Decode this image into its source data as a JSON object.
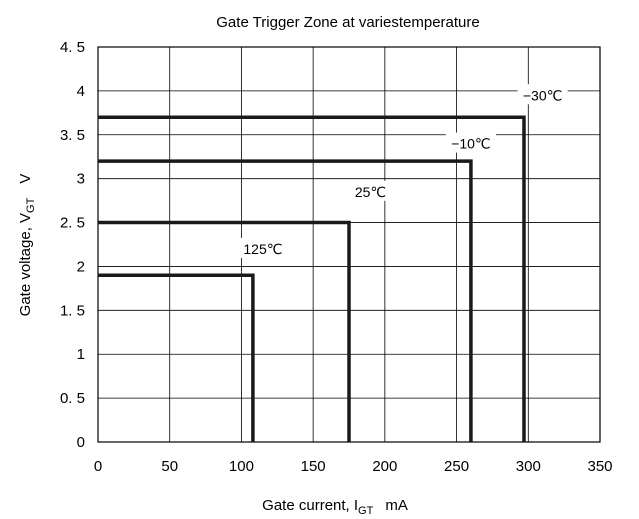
{
  "chart_data": {
    "type": "line",
    "title": "Gate Trigger Zone at variestemperature",
    "xlabel": {
      "main": "Gate current, I",
      "sub": "GT",
      "unit": "mA"
    },
    "ylabel": {
      "main": "Gate voltage, V",
      "sub": "GT",
      "unit": "V"
    },
    "xlim": [
      0,
      350
    ],
    "ylim": [
      0,
      4.5
    ],
    "x_ticks": [
      0,
      50,
      100,
      150,
      200,
      250,
      300,
      350
    ],
    "x_tick_labels": [
      "0",
      "50",
      "100",
      "150",
      "200",
      "250",
      "300",
      "350"
    ],
    "y_ticks": [
      0,
      0.5,
      1,
      1.5,
      2,
      2.5,
      3,
      3.5,
      4,
      4.5
    ],
    "y_tick_labels": [
      "0",
      "0. 5",
      "1",
      "1. 5",
      "2",
      "2. 5",
      "3",
      "3. 5",
      "4",
      "4. 5"
    ],
    "grid": true,
    "series": [
      {
        "name": "125℃",
        "x": [
          0,
          108,
          108
        ],
        "y": [
          1.9,
          1.9,
          0
        ]
      },
      {
        "name": "25℃",
        "x": [
          0,
          175,
          175
        ],
        "y": [
          2.5,
          2.5,
          0
        ]
      },
      {
        "name": "−10℃",
        "x": [
          0,
          260,
          260
        ],
        "y": [
          3.2,
          3.2,
          0
        ]
      },
      {
        "name": "−30℃",
        "x": [
          0,
          297,
          297
        ],
        "y": [
          3.7,
          3.7,
          0
        ]
      }
    ],
    "annotations": [
      {
        "text": "−30℃",
        "x": 310,
        "y": 3.95
      },
      {
        "text": "−10℃",
        "x": 260,
        "y": 3.4
      },
      {
        "text": "25℃",
        "x": 190,
        "y": 2.85
      },
      {
        "text": "125℃",
        "x": 115,
        "y": 2.2
      }
    ]
  }
}
